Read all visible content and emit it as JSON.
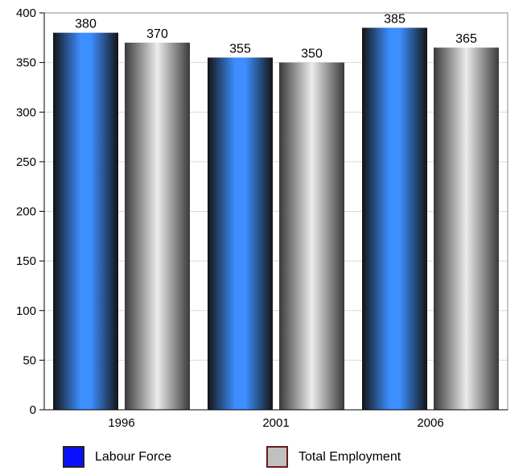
{
  "chart_data": {
    "type": "bar",
    "categories": [
      "1996",
      "2001",
      "2006"
    ],
    "series": [
      {
        "name": "Labour Force",
        "values": [
          380,
          355,
          385
        ],
        "color": "#0a10ff"
      },
      {
        "name": "Total Employment",
        "values": [
          370,
          350,
          365
        ],
        "color": "#c0c0c0"
      }
    ],
    "ylim": [
      0,
      400
    ],
    "yticks": [
      0,
      50,
      100,
      150,
      200,
      250,
      300,
      350,
      400
    ],
    "grid": true,
    "legend_position": "bottom",
    "data_labels": true
  }
}
